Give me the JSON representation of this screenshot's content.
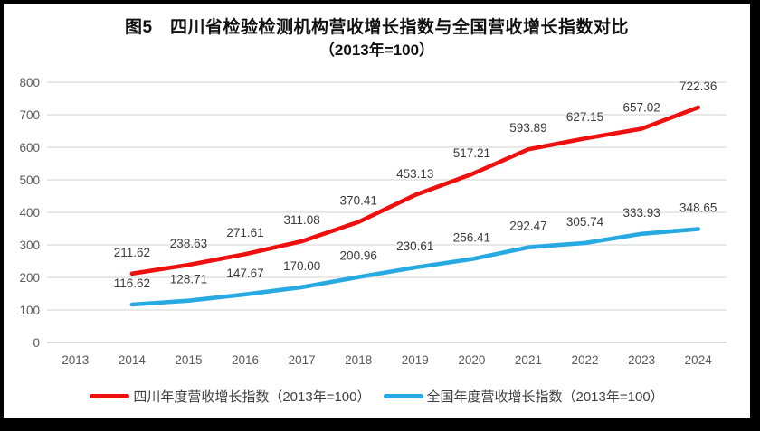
{
  "title": {
    "line1": "图5　四川省检验检测机构营收增长指数与全国营收增长指数对比",
    "line2": "（2013年=100）"
  },
  "colors": {
    "sichuan_red": "#ee0f0f",
    "national_blue": "#27aae1",
    "gridline": "#d9d9d9",
    "axis_line": "#c3c3c3",
    "axis_text": "#595959",
    "data_label": "#3a3a3a",
    "title_text": "#111111",
    "panel_bg": "#ffffff",
    "frame_bg": "#000000"
  },
  "legend": {
    "items": [
      {
        "label": "四川年度营收增长指数（2013年=100）",
        "color": "#ee0f0f"
      },
      {
        "label": "全国年度营收增长指数（2013年=100）",
        "color": "#27aae1"
      }
    ]
  },
  "chart_data": {
    "type": "line",
    "title": "图5　四川省检验检测机构营收增长指数与全国营收增长指数对比（2013年=100）",
    "xlabel": "",
    "ylabel": "",
    "categories": [
      "2013",
      "2014",
      "2015",
      "2016",
      "2017",
      "2018",
      "2019",
      "2020",
      "2021",
      "2022",
      "2023",
      "2024"
    ],
    "series": [
      {
        "name": "四川年度营收增长指数（2013年=100）",
        "color": "#ee0f0f",
        "values": [
          null,
          211.62,
          238.63,
          271.61,
          311.08,
          370.41,
          453.13,
          517.21,
          593.89,
          627.15,
          657.02,
          722.36
        ]
      },
      {
        "name": "全国年度营收增长指数（2013年=100）",
        "color": "#27aae1",
        "values": [
          null,
          116.62,
          128.71,
          147.67,
          170.0,
          200.96,
          230.61,
          256.41,
          292.47,
          305.74,
          333.93,
          348.65
        ]
      }
    ],
    "ylim": [
      0,
      800
    ],
    "y_ticks": [
      0,
      100,
      200,
      300,
      400,
      500,
      600,
      700,
      800
    ],
    "grid": "horizontal",
    "data_labels": true,
    "legend_position": "bottom"
  }
}
